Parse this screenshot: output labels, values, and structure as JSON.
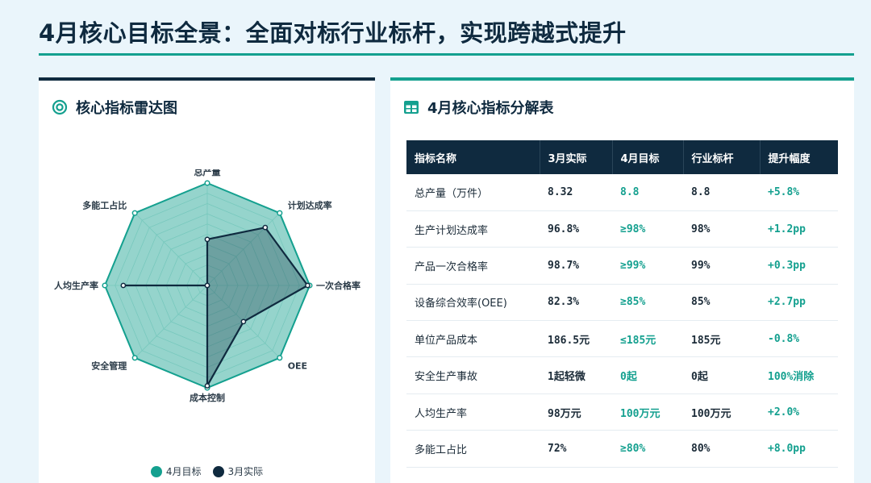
{
  "page_title": "4月核心目标全景：全面对标行业标杆，实现跨越式提升",
  "radar_card": {
    "title": "核心指标雷达图",
    "icon": "target-icon"
  },
  "table_card": {
    "title": "4月核心指标分解表",
    "icon": "table-icon",
    "columns": [
      "指标名称",
      "3月实际",
      "4月目标",
      "行业标杆",
      "提升幅度"
    ],
    "rows": [
      [
        "总产量（万件）",
        "8.32",
        "8.8",
        "8.8",
        "+5.8%"
      ],
      [
        "生产计划达成率",
        "96.8%",
        "≥98%",
        "98%",
        "+1.2pp"
      ],
      [
        "产品一次合格率",
        "98.7%",
        "≥99%",
        "99%",
        "+0.3pp"
      ],
      [
        "设备综合效率(OEE)",
        "82.3%",
        "≥85%",
        "85%",
        "+2.7pp"
      ],
      [
        "单位产品成本",
        "186.5元",
        "≤185元",
        "185元",
        "-0.8%"
      ],
      [
        "安全生产事故",
        "1起轻微",
        "0起",
        "0起",
        "100%消除"
      ],
      [
        "人均生产率",
        "98万元",
        "100万元",
        "100万元",
        "+2.0%"
      ],
      [
        "多能工占比",
        "72%",
        "≥80%",
        "80%",
        "+8.0pp"
      ]
    ]
  },
  "chart_data": {
    "type": "radar",
    "axes": [
      "总产量",
      "计划达成率",
      "一次合格率",
      "OEE",
      "成本控制",
      "安全管理",
      "人均生产率",
      "多能工占比"
    ],
    "range": [
      0,
      100
    ],
    "series": [
      {
        "name": "4月目标",
        "color": "#14a08f",
        "values": [
          100,
          100,
          100,
          100,
          100,
          100,
          100,
          100
        ]
      },
      {
        "name": "3月实际",
        "color": "#0f2a3f",
        "values": [
          45,
          80,
          98,
          50,
          98,
          0,
          82,
          0
        ]
      }
    ],
    "legend_position": "bottom"
  },
  "colors": {
    "accent": "#14a08f",
    "dark": "#0f2a3f"
  }
}
